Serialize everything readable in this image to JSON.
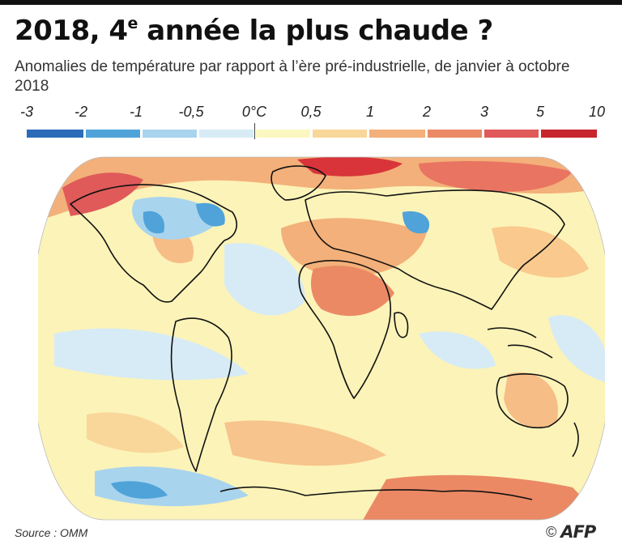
{
  "title": {
    "main": "2018, 4",
    "sup": "e",
    "rest": " année la plus chaude ?"
  },
  "subtitle": "Anomalies de température par rapport à l’ère pré-industrielle, de janvier à octobre 2018",
  "legend": {
    "labels": [
      "-3",
      "-2",
      "-1",
      "-0,5",
      "0°C",
      "0,5",
      "1",
      "2",
      "3",
      "5",
      "10"
    ],
    "colors": [
      "#2b6cb8",
      "#4fa3d9",
      "#a9d4ee",
      "#d6ebf5",
      "#fcf7c0",
      "#f9d79a",
      "#f3b07a",
      "#eb8964",
      "#e05a5a",
      "#c8262d",
      "#8c1a1f"
    ]
  },
  "source": "Source : OMM",
  "credit": {
    "copyright": "©",
    "agency": "AFP"
  }
}
